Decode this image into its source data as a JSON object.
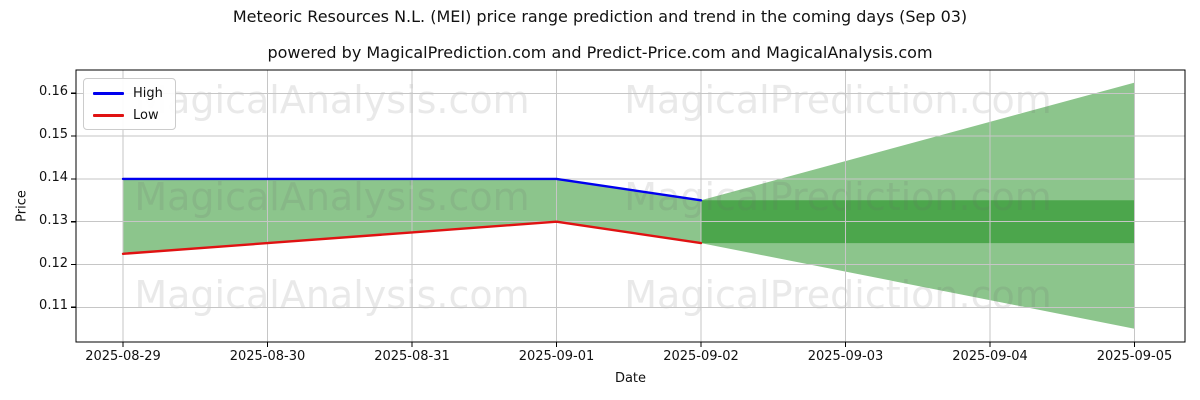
{
  "chart_data": {
    "type": "line",
    "title": "Meteoric Resources N.L. (MEI) price range prediction and trend in the coming days (Sep 03)",
    "subtitle": "powered by MagicalPrediction.com and Predict-Price.com and MagicalAnalysis.com",
    "xlabel": "Date",
    "ylabel": "Price",
    "x_dates": [
      "2025-08-29",
      "2025-08-30",
      "2025-08-31",
      "2025-09-01",
      "2025-09-02",
      "2025-09-03",
      "2025-09-04",
      "2025-09-05"
    ],
    "ytick_values": [
      0.11,
      0.12,
      0.13,
      0.14,
      0.15,
      0.16
    ],
    "ylim": [
      0.102,
      0.1655
    ],
    "grid": true,
    "legend_position": "upper left",
    "series": [
      {
        "name": "High",
        "color": "#0000ee",
        "dates": [
          "2025-08-29",
          "2025-08-30",
          "2025-08-31",
          "2025-09-01",
          "2025-09-02"
        ],
        "values": [
          0.14,
          0.14,
          0.14,
          0.14,
          0.135
        ]
      },
      {
        "name": "Low",
        "color": "#e01212",
        "dates": [
          "2025-08-29",
          "2025-08-30",
          "2025-08-31",
          "2025-09-01",
          "2025-09-02"
        ],
        "values": [
          0.1225,
          0.125,
          0.1275,
          0.13,
          0.125
        ]
      }
    ],
    "history_range_band": {
      "color": "#8cc58c",
      "between": [
        "High",
        "Low"
      ],
      "dates": [
        "2025-08-29",
        "2025-09-02"
      ]
    },
    "prediction_fan": {
      "color": "#8cc58c",
      "dates": [
        "2025-09-02",
        "2025-09-05"
      ],
      "upper": [
        0.135,
        0.1625
      ],
      "lower": [
        0.125,
        0.105
      ]
    },
    "prediction_core_band": {
      "color": "#4ca64c",
      "dates": [
        "2025-09-02",
        "2025-09-05"
      ],
      "upper": [
        0.135,
        0.135
      ],
      "lower": [
        0.125,
        0.125
      ]
    }
  },
  "legend": {
    "items": [
      {
        "label": "High",
        "color": "#0000ee"
      },
      {
        "label": "Low",
        "color": "#e01212"
      }
    ]
  },
  "watermarks": {
    "left_text": "MagicalAnalysis.com",
    "right_text": "MagicalPrediction.com",
    "color": "#6e6e6e",
    "opacity": 0.15
  },
  "style_colors": {
    "grid": "#c6c6c6",
    "spine": "#000000",
    "background": "#ffffff"
  }
}
